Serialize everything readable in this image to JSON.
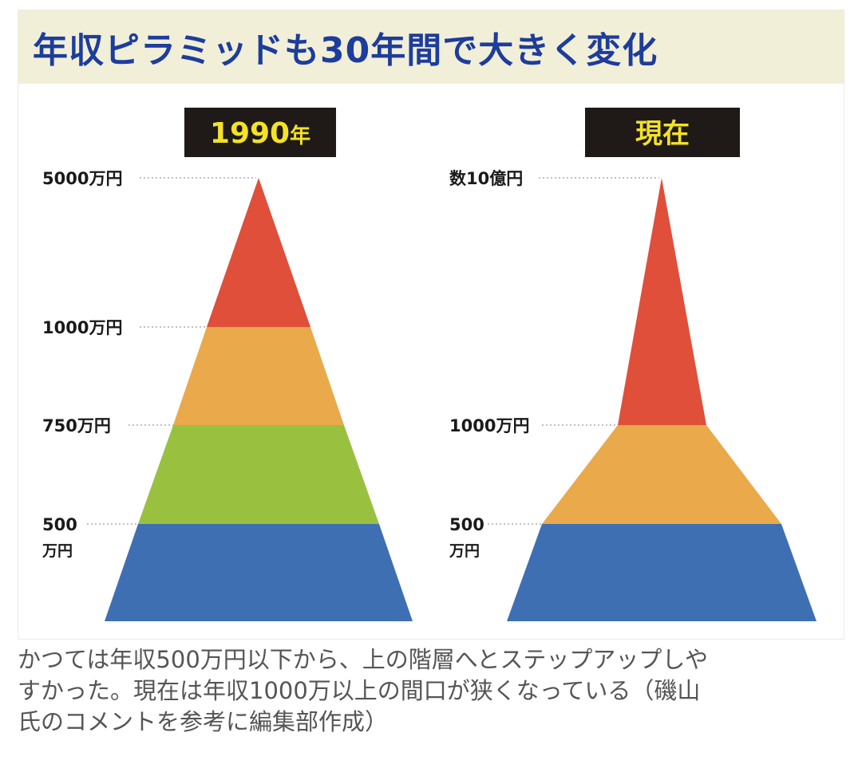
{
  "title": "年収ピラミッドも30年間で大きく変化",
  "colors": {
    "title_bg": "#f2efd9",
    "title_text": "#1d3d9c",
    "label_bg": "#1f1a17",
    "label_text": "#f3e227",
    "red": "#df4f3a",
    "orange": "#eaa94a",
    "green": "#99c13f",
    "blue": "#3f6fb3"
  },
  "pyramids": [
    {
      "label_main": "1990",
      "label_suffix": "年",
      "levels": [
        "5000万円",
        "1000万円",
        "750万円",
        "500",
        "万円"
      ],
      "bands": [
        {
          "name": "blue-band",
          "color": "blue"
        },
        {
          "name": "green-band",
          "color": "green"
        },
        {
          "name": "orange-band",
          "color": "orange"
        },
        {
          "name": "red-band",
          "color": "red"
        }
      ]
    },
    {
      "label_main": "現在",
      "levels": [
        "数10億円",
        "1000万円",
        "500",
        "万円"
      ],
      "bands": [
        {
          "name": "blue-band",
          "color": "blue"
        },
        {
          "name": "orange-band",
          "color": "orange"
        },
        {
          "name": "red-band",
          "color": "red"
        }
      ]
    }
  ],
  "caption": [
    "かつては年収500万円以下から、上の階層へとステップアップしや",
    "すかった。現在は年収1000万以上の間口が狭くなっている（磯山",
    "氏のコメントを参考に編集部作成）"
  ]
}
